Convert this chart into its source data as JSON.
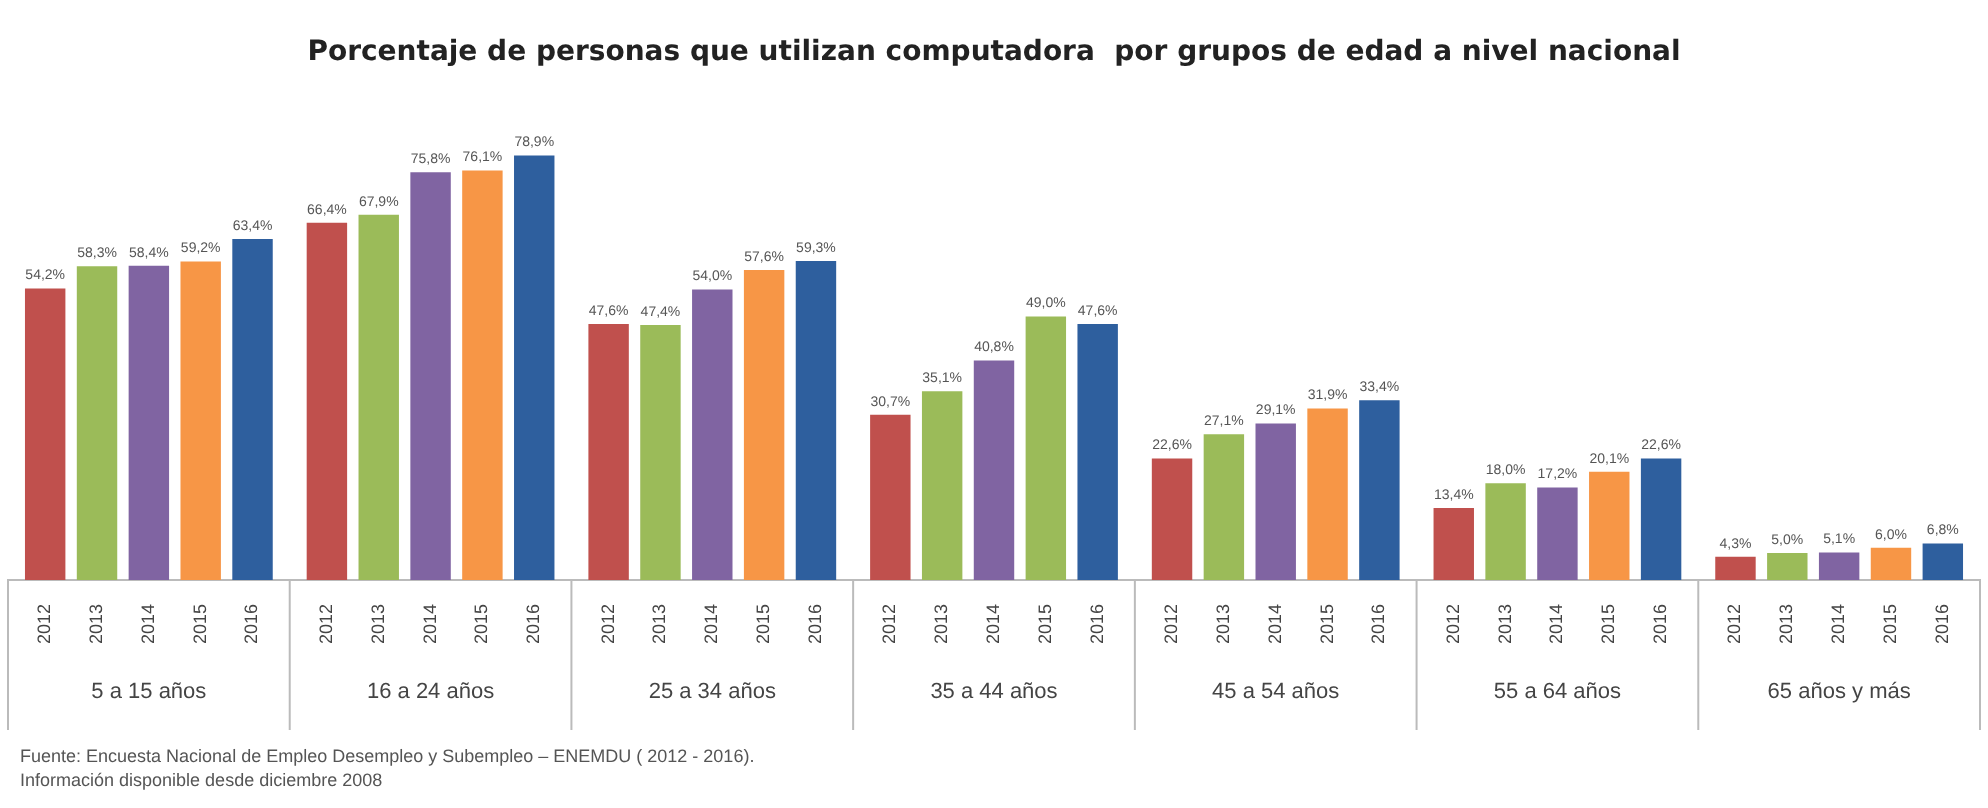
{
  "chart_data": {
    "type": "bar",
    "title": "Porcentaje de personas que utilizan computadora  por grupos de edad a nivel nacional",
    "categories": [
      "5 a 15 años",
      "16 a 24 años",
      "25 a 34 años",
      "35 a 44 años",
      "45 a 54 años",
      "55 a 64 años",
      "65 años y más"
    ],
    "series": [
      {
        "name": "2012",
        "color": "#c0504d",
        "values": [
          54.2,
          66.4,
          47.6,
          30.7,
          22.6,
          13.4,
          4.3
        ],
        "value_labels": [
          "54,2%",
          "66,4%",
          "47,6%",
          "30,7%",
          "22,6%",
          "13,4%",
          "4,3%"
        ]
      },
      {
        "name": "2013",
        "color": "#9bbb59",
        "values": [
          58.3,
          67.9,
          47.4,
          35.1,
          27.1,
          18.0,
          5.0
        ],
        "value_labels": [
          "58,3%",
          "67,9%",
          "47,4%",
          "35,1%",
          "27,1%",
          "18,0%",
          "5,0%"
        ]
      },
      {
        "name": "2014",
        "color": "#8064a2",
        "values": [
          58.4,
          75.8,
          54.0,
          40.8,
          29.1,
          17.2,
          5.1
        ],
        "value_labels": [
          "58,4%",
          "75,8%",
          "54,0%",
          "40,8%",
          "29,1%",
          "17,2%",
          "5,1%"
        ]
      },
      {
        "name": "2015",
        "color": "#f79646",
        "colors": [
          null,
          null,
          null,
          "#9bbb59",
          null,
          null,
          null
        ],
        "values": [
          59.2,
          76.1,
          57.6,
          49.0,
          31.9,
          20.1,
          6.0
        ],
        "value_labels": [
          "59,2%",
          "76,1%",
          "57,6%",
          "49,0%",
          "31,9%",
          "20,1%",
          "6,0%"
        ]
      },
      {
        "name": "2016",
        "color": "#2e5f9e",
        "values": [
          63.4,
          78.9,
          59.3,
          47.6,
          33.4,
          22.6,
          6.8
        ],
        "value_labels": [
          "63,4%",
          "78,9%",
          "59,3%",
          "47,6%",
          "33,4%",
          "22,6%",
          "6,8%"
        ]
      }
    ],
    "grid": false,
    "legend": false,
    "annotations": [
      "Fuente: Encuesta Nacional de Empleo Desempleo y Subempleo – ENEMDU ( 2012 - 2016).",
      "Información disponible desde diciembre 2008"
    ]
  }
}
